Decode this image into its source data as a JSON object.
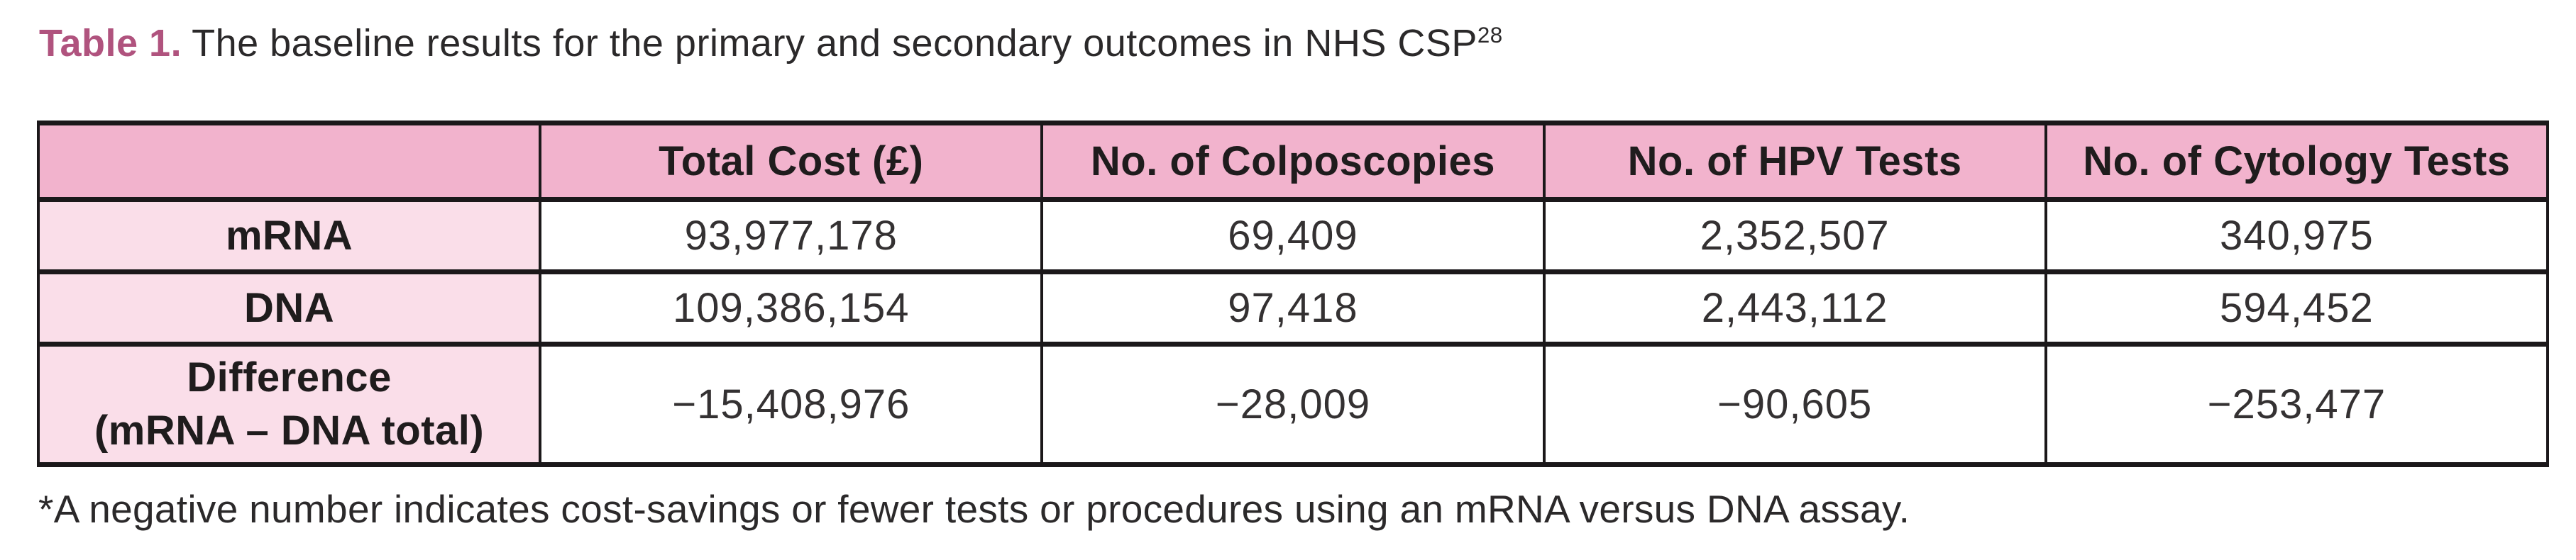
{
  "page": {
    "background_color": "#ffffff"
  },
  "colors": {
    "title_accent": "#b0537e",
    "header_row_bg": "#f2b3cd",
    "label_column_bg": "#fadee9",
    "border": "#1b181a",
    "text": "#2b292a"
  },
  "title": {
    "label": "Table 1.",
    "text": "The baseline results for the primary and secondary outcomes in NHS CSP",
    "superscript": "28"
  },
  "table": {
    "columns": [
      "",
      "Total Cost (£)",
      "No. of Colposcopies",
      "No. of HPV Tests",
      "No. of Cytology Tests"
    ],
    "rows": [
      {
        "label": "mRNA",
        "values": [
          "93,977,178",
          "69,409",
          "2,352,507",
          "340,975"
        ]
      },
      {
        "label": "DNA",
        "values": [
          "109,386,154",
          "97,418",
          "2,443,112",
          "594,452"
        ]
      },
      {
        "label_line1": "Difference",
        "label_line2": "(mRNA – DNA total)",
        "values": [
          "−15,408,976",
          "−28,009",
          "−90,605",
          "−253,477"
        ]
      }
    ]
  },
  "footnote": "*A negative number indicates cost-savings or fewer tests or procedures using an mRNA versus DNA assay.",
  "chart_data": {
    "type": "table",
    "title": "Table 1. The baseline results for the primary and secondary outcomes in NHS CSP28",
    "categories": [
      "Total Cost (£)",
      "No. of Colposcopies",
      "No. of HPV Tests",
      "No. of Cytology Tests"
    ],
    "series": [
      {
        "name": "mRNA",
        "values": [
          93977178,
          69409,
          2352507,
          340975
        ]
      },
      {
        "name": "DNA",
        "values": [
          109386154,
          97418,
          2443112,
          594452
        ]
      },
      {
        "name": "Difference (mRNA – DNA total)",
        "values": [
          -15408976,
          -28009,
          -90605,
          -253477
        ]
      }
    ]
  }
}
